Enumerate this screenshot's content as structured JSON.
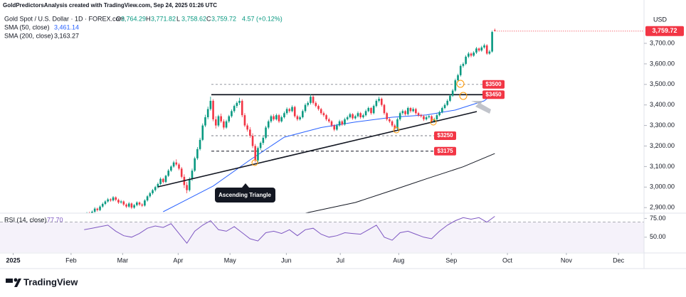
{
  "header": {
    "credit": "GoldPredictorsAnalysis created with TradingView.com, Sep 24, 2025 01:26 UTC",
    "symbol": "Gold Spot / U.S. Dollar · 1D · FOREX.com",
    "ohlc": [
      {
        "label": "O",
        "value": "3,764.29"
      },
      {
        "label": "H",
        "value": "3,771.82"
      },
      {
        "label": "L",
        "value": "3,758.62"
      },
      {
        "label": "C",
        "value": "3,759.72"
      }
    ],
    "change": "4.57 (+0.12%)"
  },
  "footer": "TradingView",
  "chart_data": {
    "type": "candlestick",
    "currency": "USD",
    "last_price_label": "3,759.72",
    "up_color": "#089981",
    "down_color": "#f23645",
    "xlim": [
      -32,
      212.7
    ],
    "ylim": [
      2873,
      3911
    ],
    "yticks": [
      {
        "value": 3700,
        "label": "3,700.00"
      },
      {
        "value": 3600,
        "label": "3,600.00"
      },
      {
        "value": 3500,
        "label": "3,500.00"
      },
      {
        "value": 3400,
        "label": "3,400.00"
      },
      {
        "value": 3300,
        "label": "3,300.00"
      },
      {
        "value": 3200,
        "label": "3,200.00"
      },
      {
        "value": 3100,
        "label": "3,100.00"
      },
      {
        "value": 3000,
        "label": "3,000.00"
      },
      {
        "value": 2900,
        "label": "2,900.00"
      }
    ],
    "xticks": [
      {
        "value": -27,
        "label": "2025"
      },
      {
        "value": -5,
        "label": "Feb"
      },
      {
        "value": 14.6,
        "label": "Mar"
      },
      {
        "value": 35.7,
        "label": "Apr"
      },
      {
        "value": 55.4,
        "label": "May"
      },
      {
        "value": 76.8,
        "label": "Jun"
      },
      {
        "value": 97.3,
        "label": "Jul"
      },
      {
        "value": 119.5,
        "label": "Aug"
      },
      {
        "value": 139.5,
        "label": "Sep"
      },
      {
        "value": 160.8,
        "label": "Oct"
      },
      {
        "value": 183.2,
        "label": "Nov"
      },
      {
        "value": 203,
        "label": "Dec"
      }
    ],
    "candles": [
      [
        2850,
        2866,
        2844,
        2860
      ],
      [
        2860,
        2878,
        2855,
        2872
      ],
      [
        2872,
        2880,
        2859,
        2865
      ],
      [
        2865,
        2886,
        2860,
        2880
      ],
      [
        2880,
        2902,
        2874,
        2895
      ],
      [
        2895,
        2900,
        2881,
        2888
      ],
      [
        2888,
        2911,
        2883,
        2905
      ],
      [
        2905,
        2925,
        2899,
        2918
      ],
      [
        2918,
        2936,
        2912,
        2930
      ],
      [
        2930,
        2947,
        2924,
        2940
      ],
      [
        2940,
        2946,
        2928,
        2935
      ],
      [
        2935,
        2956,
        2930,
        2950
      ],
      [
        2950,
        2955,
        2931,
        2938
      ],
      [
        2938,
        2944,
        2918,
        2925
      ],
      [
        2925,
        2937,
        2919,
        2930
      ],
      [
        2930,
        2935,
        2908,
        2915
      ],
      [
        2915,
        2921,
        2898,
        2905
      ],
      [
        2905,
        2927,
        2899,
        2920
      ],
      [
        2920,
        2925,
        2893,
        2900
      ],
      [
        2900,
        2918,
        2894,
        2912
      ],
      [
        2912,
        2931,
        2906,
        2925
      ],
      [
        2925,
        2930,
        2908,
        2915
      ],
      [
        2915,
        2922,
        2903,
        2910
      ],
      [
        2910,
        2941,
        2905,
        2935
      ],
      [
        2935,
        2961,
        2929,
        2955
      ],
      [
        2955,
        2977,
        2948,
        2970
      ],
      [
        2970,
        2991,
        2963,
        2985
      ],
      [
        2985,
        3006,
        2978,
        3000
      ],
      [
        3000,
        3022,
        2993,
        3015
      ],
      [
        3015,
        3047,
        3009,
        3040
      ],
      [
        3040,
        3045,
        3018,
        3025
      ],
      [
        3025,
        3060,
        3019,
        3055
      ],
      [
        3055,
        3088,
        3049,
        3080
      ],
      [
        3080,
        3106,
        3074,
        3100
      ],
      [
        3100,
        3128,
        3094,
        3120
      ],
      [
        3120,
        3135,
        3103,
        3110
      ],
      [
        3110,
        3118,
        3082,
        3090
      ],
      [
        3090,
        3098,
        3042,
        3050
      ],
      [
        3050,
        3062,
        2995,
        3010
      ],
      [
        3010,
        3025,
        2970,
        2985
      ],
      [
        2985,
        3048,
        2978,
        3040
      ],
      [
        3040,
        3090,
        3030,
        3080
      ],
      [
        3080,
        3148,
        3074,
        3140
      ],
      [
        3140,
        3195,
        3132,
        3185
      ],
      [
        3185,
        3240,
        3178,
        3230
      ],
      [
        3230,
        3310,
        3224,
        3300
      ],
      [
        3300,
        3352,
        3292,
        3340
      ],
      [
        3340,
        3392,
        3330,
        3380
      ],
      [
        3380,
        3440,
        3372,
        3420
      ],
      [
        3420,
        3428,
        3320,
        3330
      ],
      [
        3330,
        3345,
        3285,
        3300
      ],
      [
        3300,
        3352,
        3292,
        3345
      ],
      [
        3345,
        3358,
        3312,
        3320
      ],
      [
        3320,
        3330,
        3280,
        3290
      ],
      [
        3290,
        3328,
        3284,
        3320
      ],
      [
        3320,
        3352,
        3312,
        3345
      ],
      [
        3345,
        3378,
        3338,
        3370
      ],
      [
        3370,
        3402,
        3362,
        3395
      ],
      [
        3395,
        3418,
        3385,
        3410
      ],
      [
        3410,
        3435,
        3400,
        3420
      ],
      [
        3420,
        3428,
        3340,
        3350
      ],
      [
        3350,
        3360,
        3292,
        3300
      ],
      [
        3300,
        3310,
        3270,
        3280
      ],
      [
        3280,
        3292,
        3240,
        3250
      ],
      [
        3250,
        3262,
        3190,
        3200
      ],
      [
        3200,
        3210,
        3120,
        3130
      ],
      [
        3130,
        3198,
        3122,
        3190
      ],
      [
        3190,
        3222,
        3180,
        3215
      ],
      [
        3215,
        3248,
        3205,
        3240
      ],
      [
        3240,
        3298,
        3232,
        3290
      ],
      [
        3290,
        3328,
        3282,
        3320
      ],
      [
        3320,
        3352,
        3312,
        3345
      ],
      [
        3345,
        3355,
        3322,
        3330
      ],
      [
        3330,
        3358,
        3324,
        3350
      ],
      [
        3350,
        3356,
        3312,
        3320
      ],
      [
        3320,
        3348,
        3314,
        3340
      ],
      [
        3340,
        3368,
        3334,
        3360
      ],
      [
        3360,
        3388,
        3352,
        3380
      ],
      [
        3380,
        3386,
        3362,
        3370
      ],
      [
        3370,
        3398,
        3364,
        3390
      ],
      [
        3390,
        3396,
        3338,
        3345
      ],
      [
        3345,
        3352,
        3322,
        3330
      ],
      [
        3330,
        3348,
        3324,
        3340
      ],
      [
        3340,
        3378,
        3334,
        3370
      ],
      [
        3370,
        3408,
        3362,
        3400
      ],
      [
        3400,
        3418,
        3392,
        3410
      ],
      [
        3410,
        3452,
        3402,
        3440
      ],
      [
        3440,
        3446,
        3402,
        3410
      ],
      [
        3410,
        3418,
        3388,
        3395
      ],
      [
        3395,
        3402,
        3372,
        3380
      ],
      [
        3380,
        3386,
        3352,
        3360
      ],
      [
        3360,
        3368,
        3342,
        3350
      ],
      [
        3350,
        3356,
        3322,
        3330
      ],
      [
        3330,
        3338,
        3312,
        3320
      ],
      [
        3320,
        3326,
        3292,
        3300
      ],
      [
        3300,
        3306,
        3272,
        3280
      ],
      [
        3280,
        3308,
        3274,
        3300
      ],
      [
        3300,
        3328,
        3294,
        3320
      ],
      [
        3320,
        3326,
        3298,
        3305
      ],
      [
        3305,
        3338,
        3299,
        3330
      ],
      [
        3330,
        3348,
        3324,
        3340
      ],
      [
        3340,
        3362,
        3334,
        3355
      ],
      [
        3355,
        3360,
        3328,
        3335
      ],
      [
        3335,
        3352,
        3329,
        3345
      ],
      [
        3345,
        3368,
        3339,
        3360
      ],
      [
        3360,
        3366,
        3332,
        3340
      ],
      [
        3340,
        3358,
        3334,
        3350
      ],
      [
        3350,
        3378,
        3344,
        3370
      ],
      [
        3370,
        3392,
        3364,
        3385
      ],
      [
        3385,
        3390,
        3352,
        3360
      ],
      [
        3360,
        3402,
        3354,
        3395
      ],
      [
        3395,
        3428,
        3388,
        3420
      ],
      [
        3420,
        3440,
        3412,
        3430
      ],
      [
        3430,
        3436,
        3392,
        3400
      ],
      [
        3400,
        3406,
        3352,
        3360
      ],
      [
        3360,
        3366,
        3322,
        3330
      ],
      [
        3330,
        3338,
        3312,
        3320
      ],
      [
        3320,
        3326,
        3292,
        3300
      ],
      [
        3300,
        3308,
        3270,
        3285
      ],
      [
        3285,
        3338,
        3278,
        3330
      ],
      [
        3330,
        3368,
        3322,
        3360
      ],
      [
        3360,
        3378,
        3352,
        3370
      ],
      [
        3370,
        3376,
        3348,
        3355
      ],
      [
        3355,
        3392,
        3349,
        3385
      ],
      [
        3385,
        3390,
        3362,
        3370
      ],
      [
        3370,
        3388,
        3364,
        3380
      ],
      [
        3380,
        3386,
        3352,
        3360
      ],
      [
        3360,
        3366,
        3342,
        3350
      ],
      [
        3350,
        3357,
        3338,
        3345
      ],
      [
        3345,
        3352,
        3322,
        3330
      ],
      [
        3330,
        3348,
        3324,
        3340
      ],
      [
        3340,
        3352,
        3334,
        3345
      ],
      [
        3345,
        3350,
        3314,
        3320
      ],
      [
        3320,
        3338,
        3314,
        3330
      ],
      [
        3330,
        3358,
        3324,
        3350
      ],
      [
        3350,
        3372,
        3344,
        3365
      ],
      [
        3365,
        3392,
        3359,
        3385
      ],
      [
        3385,
        3408,
        3379,
        3400
      ],
      [
        3400,
        3428,
        3394,
        3420
      ],
      [
        3420,
        3452,
        3414,
        3445
      ],
      [
        3445,
        3478,
        3439,
        3470
      ],
      [
        3470,
        3528,
        3464,
        3520
      ],
      [
        3520,
        3552,
        3512,
        3545
      ],
      [
        3545,
        3598,
        3538,
        3590
      ],
      [
        3590,
        3608,
        3582,
        3600
      ],
      [
        3600,
        3642,
        3594,
        3635
      ],
      [
        3635,
        3658,
        3628,
        3650
      ],
      [
        3650,
        3656,
        3632,
        3640
      ],
      [
        3640,
        3662,
        3634,
        3655
      ],
      [
        3655,
        3682,
        3648,
        3675
      ],
      [
        3675,
        3680,
        3658,
        3665
      ],
      [
        3665,
        3688,
        3659,
        3680
      ],
      [
        3680,
        3698,
        3674,
        3690
      ],
      [
        3690,
        3696,
        3644,
        3650
      ],
      [
        3650,
        3668,
        3644,
        3660
      ],
      [
        3660,
        3762,
        3655,
        3755.15
      ],
      [
        3764.29,
        3771.82,
        3758.62,
        3759.72
      ]
    ],
    "series": [
      {
        "name": "SMA (50, close)",
        "color": "#2962ff",
        "last_value_label": "3,461.14",
        "x": [
          30,
          49,
          63,
          76,
          90,
          103,
          117,
          130,
          141,
          152,
          156
        ],
        "values": [
          2880,
          3005,
          3132,
          3243,
          3290,
          3317,
          3340,
          3351,
          3375,
          3420,
          3461.14
        ]
      },
      {
        "name": "SMA (200, close)",
        "color": "#131722",
        "last_value_label": "3,163.27",
        "x": [
          84,
          103,
          117,
          130,
          144,
          156
        ],
        "values": [
          2873,
          2925,
          2984,
          3040,
          3099,
          3163.27
        ]
      }
    ],
    "levels": [
      {
        "label": "$3500",
        "value": 3500
      },
      {
        "label": "$3450",
        "value": 3450
      },
      {
        "label": "$3250",
        "value": 3250
      },
      {
        "label": "$3175",
        "value": 3175
      }
    ],
    "annotations": [
      "Ascending Triangle"
    ],
    "rsi": {
      "name": "RSI (14, close)",
      "color": "#7e57c2",
      "last_value_label": "77.70",
      "ylim": [
        30,
        82
      ],
      "band": [
        30,
        70
      ],
      "yticks": [
        {
          "value": 75,
          "label": "75.00"
        },
        {
          "value": 50,
          "label": "50.00"
        }
      ],
      "x": [
        0,
        3,
        6,
        9,
        12,
        15,
        18,
        21,
        24,
        27,
        30,
        33,
        36,
        39,
        42,
        45,
        48,
        51,
        54,
        57,
        60,
        63,
        66,
        69,
        72,
        75,
        78,
        81,
        84,
        87,
        90,
        93,
        96,
        99,
        102,
        105,
        108,
        111,
        114,
        117,
        120,
        123,
        126,
        129,
        132,
        135,
        138,
        141,
        144,
        147,
        150,
        153,
        156
      ],
      "values": [
        60,
        62,
        64,
        66,
        58,
        52,
        50,
        55,
        62,
        65,
        63,
        68,
        55,
        42,
        58,
        66,
        72,
        60,
        58,
        64,
        56,
        48,
        45,
        56,
        58,
        55,
        60,
        52,
        60,
        62,
        54,
        50,
        52,
        56,
        55,
        54,
        60,
        66,
        50,
        46,
        56,
        58,
        54,
        50,
        48,
        58,
        66,
        72,
        76,
        74,
        76,
        70,
        77.7
      ]
    }
  }
}
